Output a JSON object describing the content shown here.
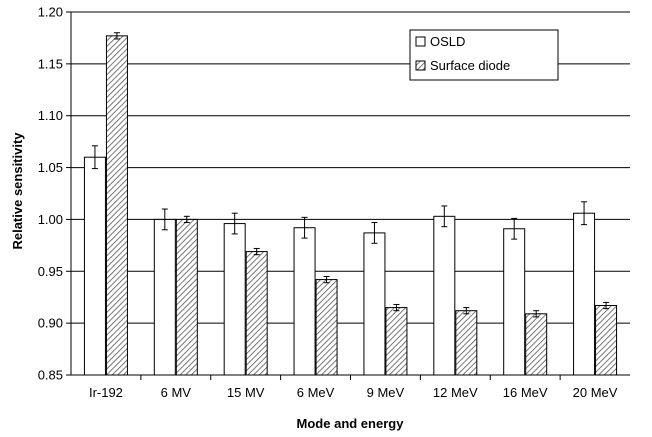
{
  "chart_data": {
    "type": "bar",
    "title": "",
    "xlabel": "Mode and energy",
    "ylabel": "Relative sensitivity",
    "categories": [
      "Ir-192",
      "6 MV",
      "15 MV",
      "6 MeV",
      "9 MeV",
      "12 MeV",
      "16 MeV",
      "20 MeV"
    ],
    "ylim": [
      0.85,
      1.2
    ],
    "yticks": [
      "0.85",
      "0.90",
      "0.95",
      "1.00",
      "1.05",
      "1.10",
      "1.15",
      "1.20"
    ],
    "grid": true,
    "legend_position": "top-right",
    "series": [
      {
        "name": "OSLD",
        "pattern": "open",
        "values": [
          1.06,
          1.0,
          0.996,
          0.992,
          0.987,
          1.003,
          0.991,
          1.006
        ],
        "errors": [
          0.011,
          0.01,
          0.01,
          0.01,
          0.01,
          0.01,
          0.01,
          0.011
        ]
      },
      {
        "name": "Surface diode",
        "pattern": "hatched",
        "values": [
          1.177,
          1.0,
          0.969,
          0.942,
          0.915,
          0.912,
          0.909,
          0.917
        ],
        "errors": [
          0.003,
          0.003,
          0.003,
          0.003,
          0.003,
          0.003,
          0.003,
          0.003
        ]
      }
    ]
  }
}
